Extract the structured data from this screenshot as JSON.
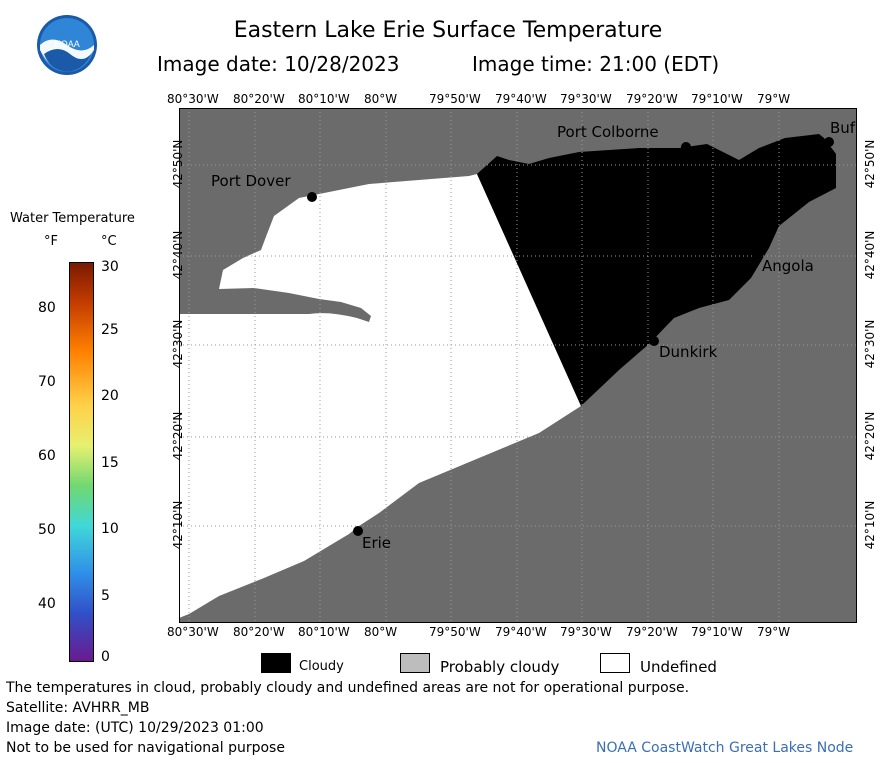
{
  "header": {
    "title": "Eastern Lake Erie Surface Temperature",
    "image_date": "Image date: 10/28/2023",
    "image_time": "Image time: 21:00 (EDT)"
  },
  "logo": {
    "text": "NOAA"
  },
  "colorbar": {
    "title": "Water Temperature",
    "unit_f": "°F",
    "unit_c": "°C",
    "f_ticks": [
      "80",
      "70",
      "60",
      "50",
      "40"
    ],
    "c_ticks": [
      "30",
      "25",
      "20",
      "15",
      "10",
      "5",
      "0"
    ]
  },
  "axes": {
    "lon_ticks": [
      "80°30'W",
      "80°20'W",
      "80°10'W",
      "80°W",
      "79°50'W",
      "79°40'W",
      "79°30'W",
      "79°20'W",
      "79°10'W",
      "79°W"
    ],
    "lat_ticks": [
      "42°50'N",
      "42°40'N",
      "42°30'N",
      "42°20'N",
      "42°10'N"
    ]
  },
  "places": {
    "port_colborne": "Port Colborne",
    "port_dover": "Port Dover",
    "angola": "Angola",
    "dunkirk": "Dunkirk",
    "erie": "Erie",
    "buffalo": "Buf"
  },
  "legend": {
    "cloudy": "Cloudy",
    "probably_cloudy": "Probably cloudy",
    "undefined": "Undefined"
  },
  "footer": {
    "disclaimer": "The temperatures in cloud, probably cloudy and undefined areas are not for operational purpose.",
    "satellite": "Satellite: AVHRR_MB",
    "utc_date": "Image date: (UTC) 10/29/2023  01:00",
    "nav_warning": "Not to be used for navigational purpose",
    "credit": "NOAA CoastWatch Great Lakes Node"
  },
  "colors": {
    "land": "#6b6b6b",
    "cloud": "#000000",
    "undefined": "#ffffff",
    "grid": "#999999",
    "credit": "#3a6fb5"
  }
}
